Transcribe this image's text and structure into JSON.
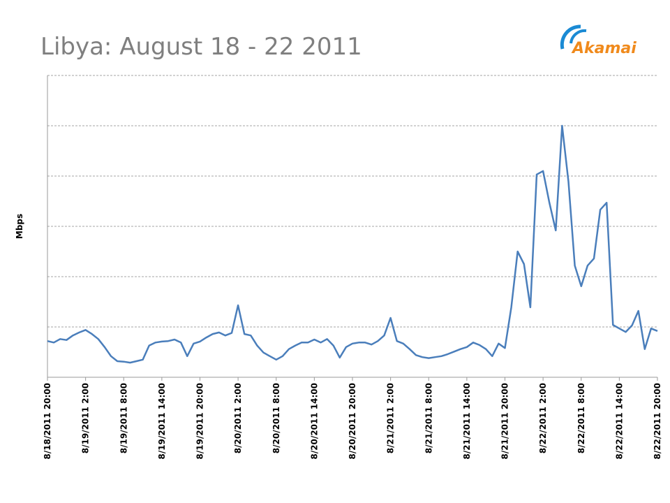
{
  "logo": "Akamai",
  "chart_data": {
    "type": "line",
    "title": "Libya: August 18 - 22 2011",
    "y_label": "Mbps",
    "x": [
      "8/18/2011 20:00",
      "8/18/2011 21:00",
      "8/18/2011 22:00",
      "8/18/2011 23:00",
      "8/19/2011 0:00",
      "8/19/2011 1:00",
      "8/19/2011 2:00",
      "8/19/2011 3:00",
      "8/19/2011 4:00",
      "8/19/2011 5:00",
      "8/19/2011 6:00",
      "8/19/2011 7:00",
      "8/19/2011 8:00",
      "8/19/2011 9:00",
      "8/19/2011 10:00",
      "8/19/2011 11:00",
      "8/19/2011 12:00",
      "8/19/2011 13:00",
      "8/19/2011 14:00",
      "8/19/2011 15:00",
      "8/19/2011 16:00",
      "8/19/2011 17:00",
      "8/19/2011 18:00",
      "8/19/2011 19:00",
      "8/19/2011 20:00",
      "8/19/2011 21:00",
      "8/19/2011 22:00",
      "8/19/2011 23:00",
      "8/20/2011 0:00",
      "8/20/2011 1:00",
      "8/20/2011 2:00",
      "8/20/2011 3:00",
      "8/20/2011 4:00",
      "8/20/2011 5:00",
      "8/20/2011 6:00",
      "8/20/2011 7:00",
      "8/20/2011 8:00",
      "8/20/2011 9:00",
      "8/20/2011 10:00",
      "8/20/2011 11:00",
      "8/20/2011 12:00",
      "8/20/2011 13:00",
      "8/20/2011 14:00",
      "8/20/2011 15:00",
      "8/20/2011 16:00",
      "8/20/2011 17:00",
      "8/20/2011 18:00",
      "8/20/2011 19:00",
      "8/20/2011 20:00",
      "8/20/2011 21:00",
      "8/20/2011 22:00",
      "8/20/2011 23:00",
      "8/21/2011 0:00",
      "8/21/2011 1:00",
      "8/21/2011 2:00",
      "8/21/2011 3:00",
      "8/21/2011 4:00",
      "8/21/2011 5:00",
      "8/21/2011 6:00",
      "8/21/2011 7:00",
      "8/21/2011 8:00",
      "8/21/2011 9:00",
      "8/21/2011 10:00",
      "8/21/2011 11:00",
      "8/21/2011 12:00",
      "8/21/2011 13:00",
      "8/21/2011 14:00",
      "8/21/2011 15:00",
      "8/21/2011 16:00",
      "8/21/2011 17:00",
      "8/21/2011 18:00",
      "8/21/2011 19:00",
      "8/21/2011 20:00",
      "8/21/2011 21:00",
      "8/21/2011 22:00",
      "8/21/2011 23:00",
      "8/22/2011 0:00",
      "8/22/2011 1:00",
      "8/22/2011 2:00",
      "8/22/2011 3:00",
      "8/22/2011 4:00",
      "8/22/2011 5:00",
      "8/22/2011 6:00",
      "8/22/2011 7:00",
      "8/22/2011 8:00",
      "8/22/2011 9:00",
      "8/22/2011 10:00",
      "8/22/2011 11:00",
      "8/22/2011 12:00",
      "8/22/2011 13:00",
      "8/22/2011 14:00",
      "8/22/2011 15:00",
      "8/22/2011 16:00",
      "8/22/2011 17:00",
      "8/22/2011 18:00",
      "8/22/2011 19:00",
      "8/22/2011 20:00"
    ],
    "series": [
      {
        "name": "Mbps",
        "color": "#4a7ebb",
        "values": [
          0.72,
          0.69,
          0.76,
          0.74,
          0.83,
          0.89,
          0.94,
          0.86,
          0.76,
          0.6,
          0.42,
          0.32,
          0.31,
          0.29,
          0.32,
          0.35,
          0.63,
          0.69,
          0.71,
          0.72,
          0.75,
          0.69,
          0.42,
          0.67,
          0.71,
          0.79,
          0.86,
          0.89,
          0.83,
          0.88,
          1.43,
          0.86,
          0.83,
          0.63,
          0.49,
          0.42,
          0.35,
          0.42,
          0.56,
          0.63,
          0.69,
          0.69,
          0.75,
          0.69,
          0.76,
          0.63,
          0.39,
          0.6,
          0.67,
          0.69,
          0.69,
          0.65,
          0.72,
          0.83,
          1.18,
          0.72,
          0.67,
          0.56,
          0.44,
          0.4,
          0.38,
          0.4,
          0.42,
          0.46,
          0.51,
          0.56,
          0.6,
          0.69,
          0.64,
          0.56,
          0.42,
          0.67,
          0.58,
          1.39,
          2.5,
          2.25,
          1.39,
          4.03,
          4.1,
          3.47,
          2.92,
          5.0,
          3.89,
          2.22,
          1.81,
          2.22,
          2.36,
          3.33,
          3.47,
          1.04,
          0.97,
          0.9,
          1.03,
          1.32,
          0.56,
          0.97,
          0.92
        ]
      }
    ],
    "xlim": [
      "8/18/2011 20:00",
      "8/22/2011 20:00"
    ],
    "xticks": [
      "8/18/2011 20:00",
      "8/19/2011 2:00",
      "8/19/2011 8:00",
      "8/19/2011 14:00",
      "8/19/2011 20:00",
      "8/20/2011 2:00",
      "8/20/2011 8:00",
      "8/20/2011 14:00",
      "8/20/2011 20:00",
      "8/21/2011 2:00",
      "8/21/2011 8:00",
      "8/21/2011 14:00",
      "8/21/2011 20:00",
      "8/22/2011 2:00",
      "8/22/2011 8:00",
      "8/22/2011 14:00",
      "8/22/2011 20:00"
    ],
    "ylim": [
      0,
      6
    ],
    "ygrid": [
      1,
      2,
      3,
      4,
      5,
      6
    ],
    "grid": true
  }
}
